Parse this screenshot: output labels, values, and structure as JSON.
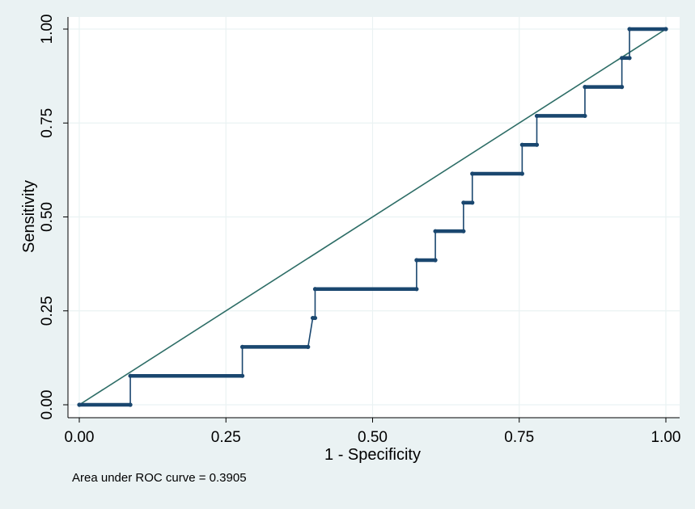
{
  "chart_data": {
    "type": "line",
    "xlabel": "1 - Specificity",
    "ylabel": "Sensitivity",
    "xlim": [
      0,
      1
    ],
    "ylim": [
      0,
      1
    ],
    "xticks": [
      "0.00",
      "0.25",
      "0.50",
      "0.75",
      "1.00"
    ],
    "yticks": [
      "0.00",
      "0.25",
      "0.50",
      "0.75",
      "1.00"
    ],
    "xtick_values": [
      0,
      0.25,
      0.5,
      0.75,
      1
    ],
    "ytick_values": [
      0,
      0.25,
      0.5,
      0.75,
      1
    ],
    "grid": true,
    "note": "Area under ROC curve = 0.3905",
    "colors": {
      "roc": "#1a476f",
      "reference": "#2d6d66",
      "plot_bg": "#ffffff",
      "grid": "#eaf2f3"
    },
    "series": [
      {
        "points": [
          [
            0.0,
            0.0
          ],
          [
            0.087,
            0.0
          ],
          [
            0.087,
            0.077
          ],
          [
            0.278,
            0.077
          ],
          [
            0.278,
            0.154
          ],
          [
            0.39,
            0.154
          ],
          [
            0.398,
            0.231
          ],
          [
            0.402,
            0.231
          ],
          [
            0.402,
            0.308
          ],
          [
            0.575,
            0.308
          ],
          [
            0.575,
            0.385
          ],
          [
            0.607,
            0.385
          ],
          [
            0.607,
            0.462
          ],
          [
            0.655,
            0.462
          ],
          [
            0.655,
            0.538
          ],
          [
            0.67,
            0.538
          ],
          [
            0.67,
            0.615
          ],
          [
            0.755,
            0.615
          ],
          [
            0.755,
            0.692
          ],
          [
            0.78,
            0.692
          ],
          [
            0.78,
            0.769
          ],
          [
            0.862,
            0.769
          ],
          [
            0.862,
            0.846
          ],
          [
            0.925,
            0.846
          ],
          [
            0.925,
            0.923
          ],
          [
            0.938,
            0.923
          ],
          [
            0.938,
            1.0
          ],
          [
            1.0,
            1.0
          ]
        ]
      },
      {
        "points": [
          [
            0,
            0
          ],
          [
            1,
            1
          ]
        ]
      }
    ]
  }
}
